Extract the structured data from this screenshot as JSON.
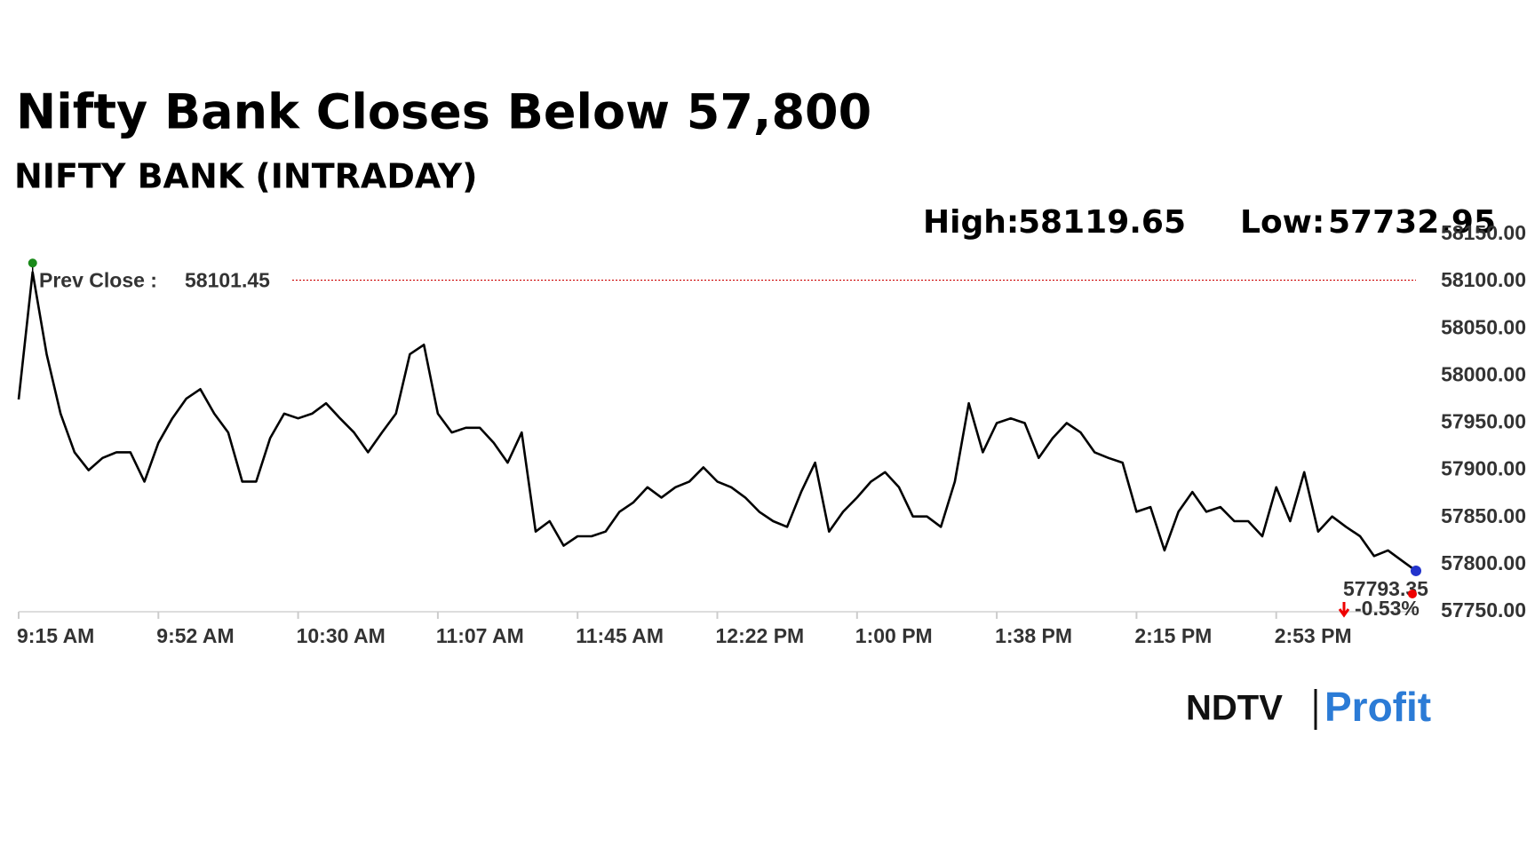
{
  "chart_data": {
    "type": "line",
    "title": "Nifty Bank Closes Below 57,800",
    "subtitle": "NIFTY BANK (INTRADAY)",
    "high_label": "High:",
    "high": 58119.65,
    "low_label": "Low:",
    "low": 57732.95,
    "prev_close_label": "Prev Close :",
    "prev_close": 58101.45,
    "change": {
      "value": -0.53,
      "label": "-0.53%"
    },
    "color": "#000000",
    "categories": [
      "9:15 AM",
      null,
      null,
      null,
      null,
      null,
      null,
      null,
      null,
      null,
      "9:52 AM",
      null,
      null,
      null,
      null,
      null,
      null,
      null,
      null,
      null,
      "10:30 AM",
      null,
      null,
      null,
      null,
      null,
      null,
      null,
      null,
      null,
      "11:07 AM",
      null,
      null,
      null,
      null,
      null,
      null,
      null,
      null,
      null,
      "11:45 AM",
      null,
      null,
      null,
      null,
      null,
      null,
      null,
      null,
      null,
      "12:22 PM",
      null,
      null,
      null,
      null,
      null,
      null,
      null,
      null,
      null,
      "1:00 PM",
      null,
      null,
      null,
      null,
      null,
      null,
      null,
      null,
      null,
      "1:38 PM",
      null,
      null,
      null,
      null,
      null,
      null,
      null,
      null,
      null,
      "2:15 PM",
      null,
      null,
      null,
      null,
      null,
      null,
      null,
      null,
      null,
      "2:53 PM",
      null,
      null,
      null,
      null,
      null,
      null,
      null,
      null,
      null,
      null
    ],
    "values": [
      57975,
      58110,
      58023,
      57960,
      57919,
      57900,
      57913,
      57919,
      57919,
      57888,
      57929,
      57955,
      57976,
      57986,
      57960,
      57940,
      57888,
      57888,
      57934,
      57960,
      57955,
      57960,
      57971,
      57955,
      57940,
      57919,
      57940,
      57960,
      58023,
      58033,
      57960,
      57940,
      57945,
      57945,
      57929,
      57908,
      57940,
      57835,
      57846,
      57820,
      57830,
      57830,
      57835,
      57856,
      57866,
      57882,
      57871,
      57882,
      57888,
      57903,
      57888,
      57882,
      57871,
      57856,
      57846,
      57840,
      57877,
      57908,
      57835,
      57856,
      57871,
      57888,
      57898,
      57882,
      57851,
      57851,
      57840,
      57888,
      57971,
      57919,
      57950,
      57955,
      57950,
      57913,
      57934,
      57950,
      57940,
      57919,
      57913,
      57908,
      57856,
      57861,
      57815,
      57856,
      57877,
      57856,
      57861,
      57846,
      57846,
      57830,
      57882,
      57846,
      57898,
      57835,
      57851,
      57840,
      57830,
      57809,
      57815,
      57804,
      57793.35
    ],
    "ylim": [
      57750,
      58150
    ],
    "yticks": [
      {
        "value": 57750,
        "label": "57750.00"
      },
      {
        "value": 57800,
        "label": "57800.00"
      },
      {
        "value": 57850,
        "label": "57850.00"
      },
      {
        "value": 57900,
        "label": "57900.00"
      },
      {
        "value": 57950,
        "label": "57950.00"
      },
      {
        "value": 58000,
        "label": "58000.00"
      },
      {
        "value": 58050,
        "label": "58050.00"
      },
      {
        "value": 58100,
        "label": "58100.00"
      },
      {
        "value": 58150,
        "label": "58150.00"
      }
    ]
  },
  "logo": {
    "brand": "NDTV",
    "product": "Profit"
  }
}
